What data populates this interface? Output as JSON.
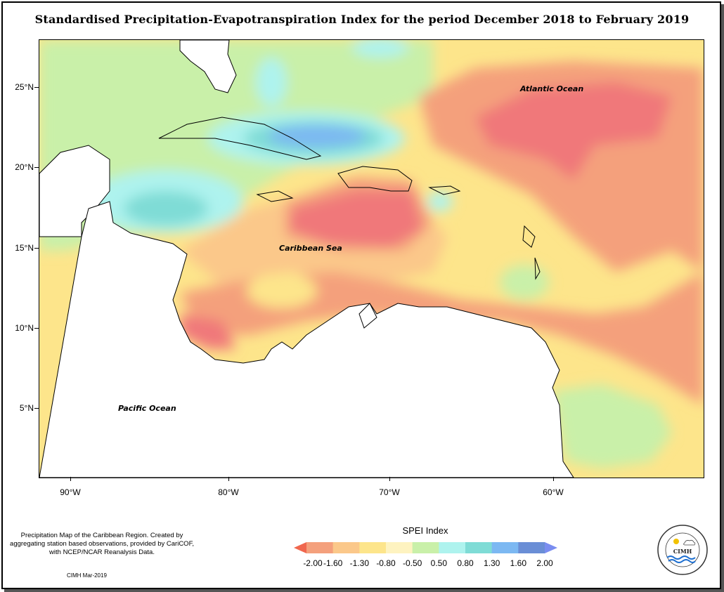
{
  "title": "Standardised Precipitation-Evapotranspiration Index for the period December 2018 to February 2019",
  "map_labels": {
    "atlantic": "Atlantic Ocean",
    "caribbean": "Caribbean Sea",
    "pacific": "Pacific Ocean"
  },
  "axes": {
    "y_ticks": [
      "25°N",
      "20°N",
      "15°N",
      "10°N",
      "5°N"
    ],
    "x_ticks": [
      "90°W",
      "80°W",
      "70°W",
      "60°W"
    ]
  },
  "legend": {
    "title": "SPEI Index",
    "labels": [
      "-2.00",
      "-1.60",
      "-1.30",
      "-0.80",
      "-0.50",
      "0.50",
      "0.80",
      "1.30",
      "1.60",
      "2.00"
    ],
    "colors": [
      "#f0674e",
      "#f4a07c",
      "#fbc88a",
      "#fde58b",
      "#fef3c0",
      "#c9f0a9",
      "#aef3ee",
      "#7fdcd6",
      "#7cb8f2",
      "#6a8ed6",
      "#7a8df0"
    ]
  },
  "notes": {
    "description": "Precipitation Map of the Caribbean Region. Created by aggregating station based observations, provided by CariCOF, with NCEP/NCAR Reanalysis Data.",
    "credit": "CIMH Mar-2019"
  },
  "logo": {
    "name": "CIMH"
  }
}
